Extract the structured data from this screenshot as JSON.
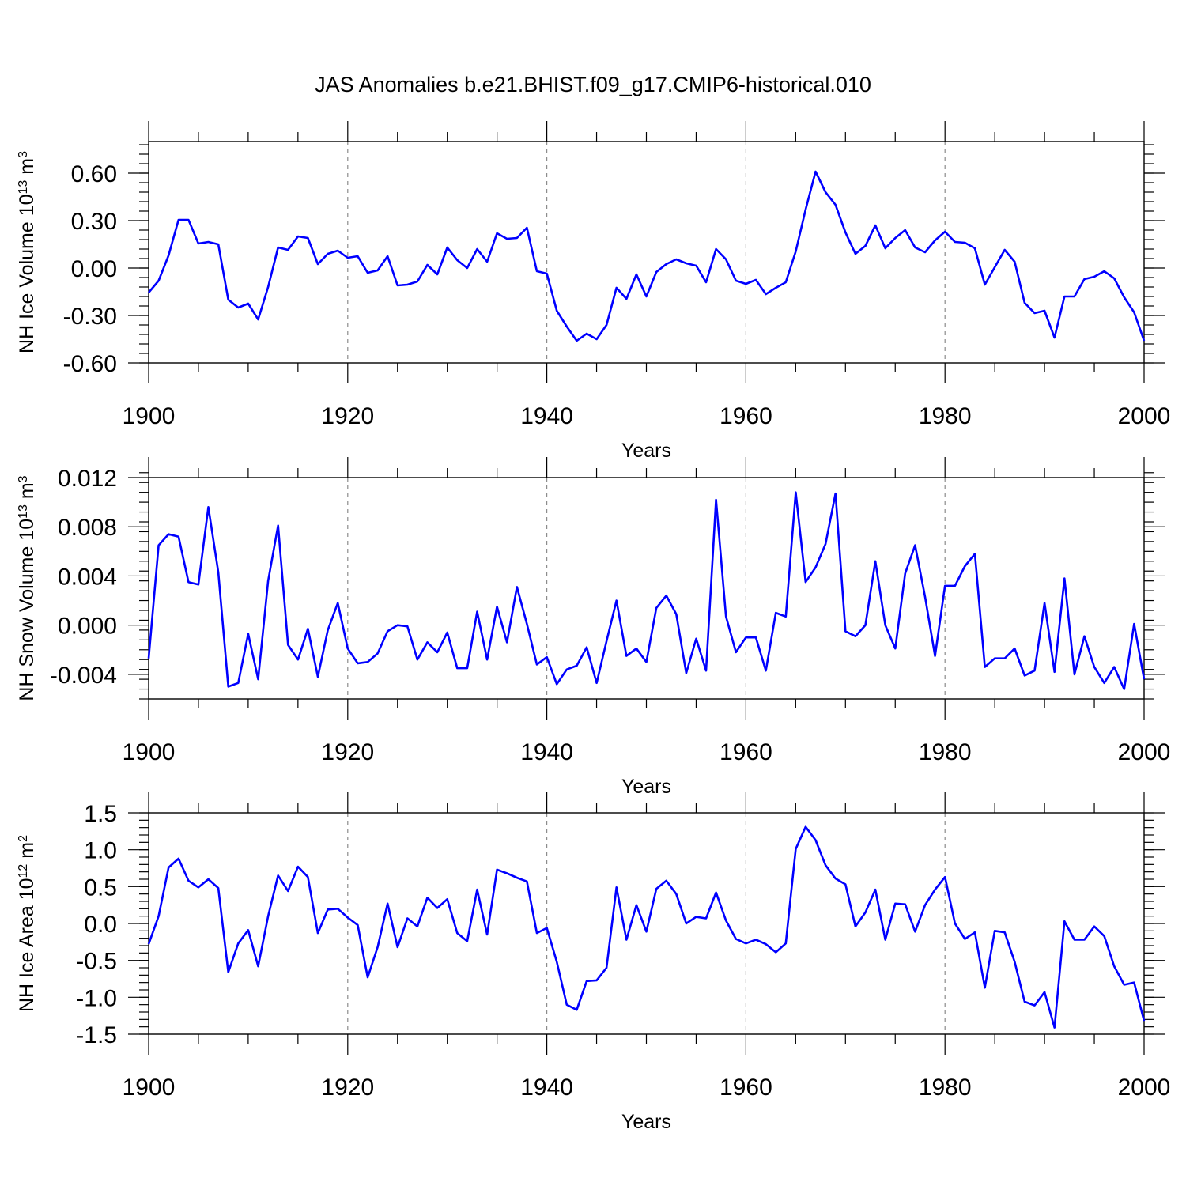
{
  "title": "JAS Anomalies b.e21.BHIST.f09_g17.CMIP6-historical.010",
  "colors": {
    "line": "#0000ff",
    "grid": "#8c8c8c",
    "axis": "#000000"
  },
  "chart_data": [
    {
      "type": "line",
      "name": "ice-volume",
      "ylabel": "NH Ice Volume 10",
      "ylabel_exp": "13",
      "ylabel_unit": "m",
      "ylabel_unit_exp": "3",
      "xlabel": "Years",
      "xlim": [
        1900,
        2000
      ],
      "ylim": [
        -0.6,
        0.8
      ],
      "xticks": [
        1900,
        1920,
        1940,
        1960,
        1980,
        2000
      ],
      "yticks": [
        -0.6,
        -0.3,
        0.0,
        0.3,
        0.6
      ],
      "ytick_labels": [
        "-0.60",
        "-0.30",
        "0.00",
        "0.30",
        "0.60"
      ],
      "yminor_step": 0.06,
      "x_start": 1900,
      "values": [
        -0.155,
        -0.08,
        0.08,
        0.305,
        0.305,
        0.155,
        0.165,
        0.15,
        -0.2,
        -0.25,
        -0.225,
        -0.325,
        -0.12,
        0.13,
        0.115,
        0.2,
        0.19,
        0.025,
        0.09,
        0.11,
        0.065,
        0.075,
        -0.03,
        -0.015,
        0.075,
        -0.11,
        -0.105,
        -0.085,
        0.02,
        -0.04,
        0.13,
        0.05,
        0.0,
        0.12,
        0.04,
        0.22,
        0.185,
        0.19,
        0.255,
        -0.02,
        -0.035,
        -0.27,
        -0.37,
        -0.46,
        -0.415,
        -0.45,
        -0.36,
        -0.125,
        -0.195,
        -0.04,
        -0.18,
        -0.025,
        0.025,
        0.055,
        0.03,
        0.015,
        -0.09,
        0.12,
        0.055,
        -0.08,
        -0.1,
        -0.075,
        -0.165,
        -0.125,
        -0.09,
        0.105,
        0.37,
        0.61,
        0.48,
        0.4,
        0.225,
        0.09,
        0.14,
        0.27,
        0.125,
        0.19,
        0.24,
        0.13,
        0.1,
        0.175,
        0.23,
        0.165,
        0.16,
        0.125,
        -0.105,
        0.005,
        0.115,
        0.04,
        -0.22,
        -0.285,
        -0.27,
        -0.44,
        -0.18,
        -0.18,
        -0.07,
        -0.055,
        -0.02,
        -0.065,
        -0.185,
        -0.28,
        -0.46
      ]
    },
    {
      "type": "line",
      "name": "snow-volume",
      "ylabel": "NH Snow Volume 10",
      "ylabel_exp": "13",
      "ylabel_unit": "m",
      "ylabel_unit_exp": "3",
      "xlabel": "Years",
      "xlim": [
        1900,
        2000
      ],
      "ylim": [
        -0.006,
        0.012
      ],
      "xticks": [
        1900,
        1920,
        1940,
        1960,
        1980,
        2000
      ],
      "yticks": [
        -0.004,
        0.0,
        0.004,
        0.008,
        0.012
      ],
      "ytick_labels": [
        "-0.004",
        "0.000",
        "0.004",
        "0.008",
        "0.012"
      ],
      "yminor_step": 0.0008,
      "x_start": 1900,
      "values": [
        -0.0027,
        0.0065,
        0.0074,
        0.0072,
        0.0035,
        0.0033,
        0.0096,
        0.0043,
        -0.005,
        -0.0047,
        -0.0007,
        -0.0044,
        0.0036,
        0.0081,
        -0.0016,
        -0.0028,
        -0.0003,
        -0.0042,
        -0.0004,
        0.0018,
        -0.0019,
        -0.0031,
        -0.003,
        -0.0023,
        -0.0005,
        0.0,
        -0.0001,
        -0.0028,
        -0.0014,
        -0.0022,
        -0.0006,
        -0.0035,
        -0.0035,
        0.0011,
        -0.0028,
        0.0015,
        -0.0014,
        0.0031,
        0.0001,
        -0.0032,
        -0.0026,
        -0.0048,
        -0.0036,
        -0.0033,
        -0.0018,
        -0.0047,
        -0.0013,
        0.002,
        -0.0025,
        -0.0019,
        -0.003,
        0.0014,
        0.0024,
        0.0009,
        -0.0039,
        -0.0011,
        -0.0037,
        0.0102,
        0.0007,
        -0.0022,
        -0.001,
        -0.001,
        -0.0037,
        0.001,
        0.0007,
        0.0108,
        0.0035,
        0.0047,
        0.0066,
        0.0107,
        -0.0005,
        -0.0009,
        0.0,
        0.0052,
        0.0,
        -0.0019,
        0.0042,
        0.0065,
        0.0023,
        -0.0025,
        0.0032,
        0.0032,
        0.0048,
        0.0058,
        -0.0034,
        -0.0027,
        -0.0027,
        -0.0019,
        -0.0041,
        -0.0037,
        0.0018,
        -0.0038,
        0.0038,
        -0.004,
        -0.0009,
        -0.0034,
        -0.0047,
        -0.0034,
        -0.0052,
        0.0001,
        -0.0044
      ]
    },
    {
      "type": "line",
      "name": "ice-area",
      "ylabel": "NH Ice Area 10",
      "ylabel_exp": "12",
      "ylabel_unit": "m",
      "ylabel_unit_exp": "2",
      "xlabel": "Years",
      "xlim": [
        1900,
        2000
      ],
      "ylim": [
        -1.5,
        1.5
      ],
      "xticks": [
        1900,
        1920,
        1940,
        1960,
        1980,
        2000
      ],
      "yticks": [
        -1.5,
        -1.0,
        -0.5,
        0.0,
        0.5,
        1.0,
        1.5
      ],
      "ytick_labels": [
        "-1.5",
        "-1.0",
        "-0.5",
        "0.0",
        "0.5",
        "1.0",
        "1.5"
      ],
      "yminor_step": 0.1,
      "x_start": 1900,
      "values": [
        -0.28,
        0.1,
        0.76,
        0.88,
        0.58,
        0.49,
        0.6,
        0.48,
        -0.66,
        -0.27,
        -0.09,
        -0.58,
        0.1,
        0.65,
        0.44,
        0.77,
        0.63,
        -0.13,
        0.19,
        0.2,
        0.08,
        -0.02,
        -0.73,
        -0.32,
        0.27,
        -0.32,
        0.07,
        -0.04,
        0.35,
        0.21,
        0.33,
        -0.13,
        -0.24,
        0.46,
        -0.15,
        0.73,
        0.68,
        0.62,
        0.57,
        -0.13,
        -0.06,
        -0.52,
        -1.1,
        -1.17,
        -0.78,
        -0.77,
        -0.6,
        0.49,
        -0.22,
        0.25,
        -0.11,
        0.47,
        0.58,
        0.4,
        0.0,
        0.09,
        0.07,
        0.42,
        0.04,
        -0.21,
        -0.27,
        -0.22,
        -0.28,
        -0.39,
        -0.27,
        1.01,
        1.31,
        1.13,
        0.79,
        0.61,
        0.53,
        -0.04,
        0.15,
        0.46,
        -0.22,
        0.27,
        0.26,
        -0.11,
        0.25,
        0.46,
        0.63,
        0.0,
        -0.21,
        -0.12,
        -0.87,
        -0.1,
        -0.12,
        -0.52,
        -1.06,
        -1.11,
        -0.93,
        -1.41,
        0.03,
        -0.22,
        -0.22,
        -0.04,
        -0.17,
        -0.58,
        -0.83,
        -0.8,
        -1.32
      ]
    }
  ]
}
